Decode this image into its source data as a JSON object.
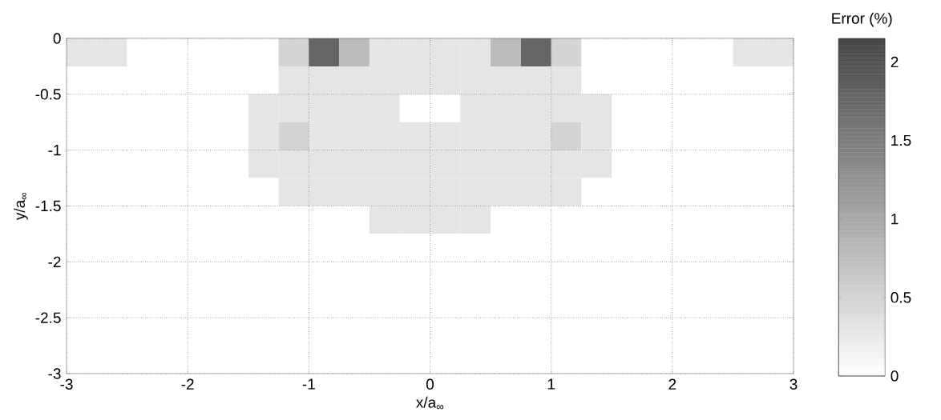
{
  "chart_data": {
    "type": "heatmap",
    "xlabel": "x/a$_{∞}$",
    "ylabel": "y/a$_{∞}$",
    "clabel": "Error (%)",
    "x": [
      -2.875,
      -2.625,
      -2.375,
      -2.125,
      -1.875,
      -1.625,
      -1.375,
      -1.125,
      -0.875,
      -0.625,
      -0.375,
      -0.125,
      0.125,
      0.375,
      0.625,
      0.875,
      1.125,
      1.375,
      1.625,
      1.875,
      2.125,
      2.375,
      2.625,
      2.875
    ],
    "y": [
      -0.125,
      -0.375,
      -0.625,
      -0.875,
      -1.125,
      -1.375,
      -1.625,
      -1.875,
      -2.125,
      -2.375,
      -2.625,
      -2.875
    ],
    "xlim": [
      -3,
      3
    ],
    "ylim": [
      -3,
      0
    ],
    "xticks": [
      -3,
      -2,
      -1,
      0,
      1,
      2,
      3
    ],
    "yticks": [
      -3,
      -2.5,
      -2,
      -1.5,
      -1,
      -0.5,
      0
    ],
    "clim": [
      0,
      2.15
    ],
    "cticks": [
      0,
      0.5,
      1,
      1.5,
      2
    ],
    "grid": true,
    "cells": [
      [
        0.3,
        0.3,
        0,
        0,
        0,
        0,
        0,
        0.5,
        1.8,
        0.8,
        0.3,
        0.3,
        0.3,
        0.3,
        0.8,
        1.8,
        0.5,
        0,
        0,
        0,
        0,
        0,
        0.3,
        0.3
      ],
      [
        0,
        0,
        0,
        0,
        0,
        0,
        0,
        0.3,
        0.3,
        0.3,
        0.3,
        0.3,
        0.3,
        0.3,
        0.3,
        0.3,
        0.3,
        0,
        0,
        0,
        0,
        0,
        0,
        0
      ],
      [
        0,
        0,
        0,
        0,
        0,
        0,
        0.3,
        0.3,
        0.3,
        0.3,
        0.3,
        0,
        0,
        0.3,
        0.3,
        0.3,
        0.3,
        0.3,
        0,
        0,
        0,
        0,
        0,
        0
      ],
      [
        0,
        0,
        0,
        0,
        0,
        0,
        0.3,
        0.5,
        0.3,
        0.3,
        0.3,
        0.3,
        0.3,
        0.3,
        0.3,
        0.3,
        0.5,
        0.3,
        0,
        0,
        0,
        0,
        0,
        0
      ],
      [
        0,
        0,
        0,
        0,
        0,
        0,
        0.3,
        0.3,
        0.3,
        0.3,
        0.3,
        0.3,
        0.3,
        0.3,
        0.3,
        0.3,
        0.3,
        0.3,
        0,
        0,
        0,
        0,
        0,
        0
      ],
      [
        0,
        0,
        0,
        0,
        0,
        0,
        0,
        0.3,
        0.3,
        0.3,
        0.3,
        0.3,
        0.3,
        0.3,
        0.3,
        0.3,
        0.3,
        0,
        0,
        0,
        0,
        0,
        0,
        0
      ],
      [
        0,
        0,
        0,
        0,
        0,
        0,
        0,
        0,
        0,
        0,
        0.3,
        0.3,
        0.3,
        0.3,
        0,
        0,
        0,
        0,
        0,
        0,
        0,
        0,
        0,
        0
      ],
      [
        0,
        0,
        0,
        0,
        0,
        0,
        0,
        0,
        0,
        0,
        0,
        0,
        0,
        0,
        0,
        0,
        0,
        0,
        0,
        0,
        0,
        0,
        0,
        0
      ],
      [
        0,
        0,
        0,
        0,
        0,
        0,
        0,
        0,
        0,
        0,
        0,
        0,
        0,
        0,
        0,
        0,
        0,
        0,
        0,
        0,
        0,
        0,
        0,
        0
      ],
      [
        0,
        0,
        0,
        0,
        0,
        0,
        0,
        0,
        0,
        0,
        0,
        0,
        0,
        0,
        0,
        0,
        0,
        0,
        0,
        0,
        0,
        0,
        0,
        0
      ],
      [
        0,
        0,
        0,
        0,
        0,
        0,
        0,
        0,
        0,
        0,
        0,
        0,
        0,
        0,
        0,
        0,
        0,
        0,
        0,
        0,
        0,
        0,
        0,
        0
      ],
      [
        0,
        0,
        0,
        0,
        0,
        0,
        0,
        0,
        0,
        0,
        0,
        0,
        0,
        0,
        0,
        0,
        0,
        0,
        0,
        0,
        0,
        0,
        0,
        0
      ]
    ]
  }
}
